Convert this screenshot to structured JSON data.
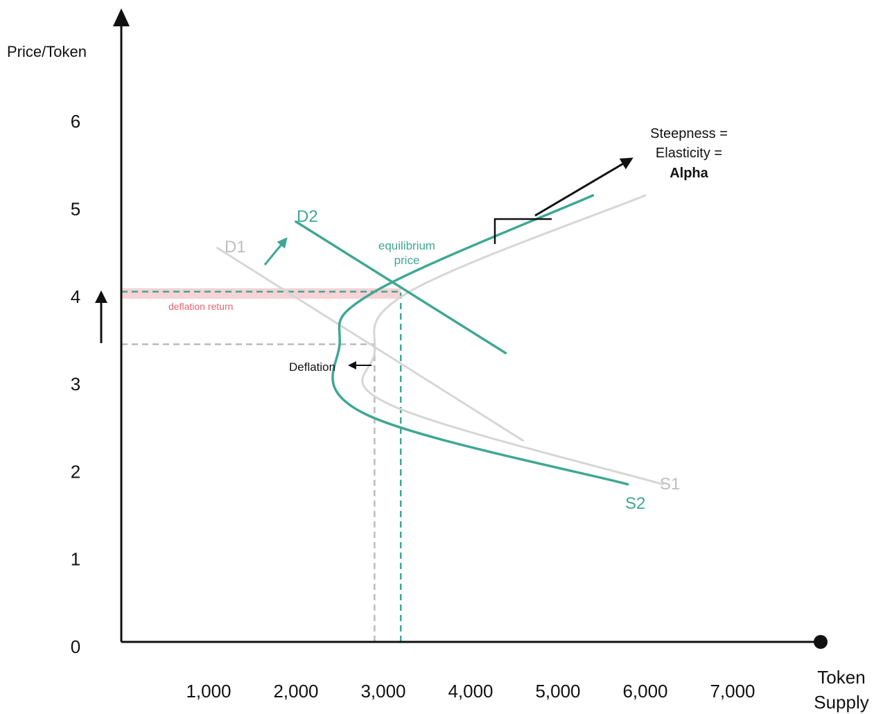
{
  "chart_data": {
    "type": "line",
    "ylabel": "Price/Token",
    "xlabel_lines": [
      "Token",
      "Supply"
    ],
    "x_ticks": [
      "1,000",
      "2,000",
      "3,000",
      "4,000",
      "5,000",
      "6,000",
      "7,000"
    ],
    "x_tick_values": [
      1000,
      2000,
      3000,
      4000,
      5000,
      6000,
      7000
    ],
    "y_ticks": [
      "0",
      "1",
      "2",
      "3",
      "4",
      "5",
      "6"
    ],
    "y_tick_values": [
      0,
      1,
      2,
      3,
      4,
      5,
      6
    ],
    "xlim": [
      0,
      7000
    ],
    "ylim": [
      0,
      6
    ],
    "series": [
      {
        "name": "D1",
        "color": "#d6d6d6",
        "points": [
          [
            1100,
            4.5
          ],
          [
            4600,
            2.3
          ]
        ]
      },
      {
        "name": "D2",
        "color": "#3fa794",
        "points": [
          [
            2000,
            4.8
          ],
          [
            4400,
            3.3
          ]
        ]
      },
      {
        "name": "S1",
        "color": "#d6d6d6",
        "points": [
          [
            6200,
            1.8
          ],
          [
            3100,
            2.7
          ],
          [
            2900,
            3.3
          ],
          [
            3300,
            4.0
          ],
          [
            6000,
            5.1
          ]
        ]
      },
      {
        "name": "S2",
        "color": "#3fa794",
        "points": [
          [
            5800,
            1.8
          ],
          [
            2800,
            2.6
          ],
          [
            2500,
            3.4
          ],
          [
            2900,
            4.0
          ],
          [
            5400,
            5.1
          ]
        ]
      }
    ],
    "reference_lines": [
      {
        "kind": "horizontal",
        "y": 4.0,
        "x_to": 3200,
        "color": "#3fa794",
        "style": "dashed"
      },
      {
        "kind": "vertical",
        "x": 3200,
        "y_from": 0,
        "y_to": 4.0,
        "color": "#3fa794",
        "style": "dashed"
      },
      {
        "kind": "horizontal",
        "y": 3.4,
        "x_to": 2900,
        "color": "#bbbbbb",
        "style": "dashed"
      },
      {
        "kind": "vertical",
        "x": 2900,
        "y_from": 0,
        "y_to": 3.4,
        "color": "#bbbbbb",
        "style": "dashed"
      }
    ],
    "band": {
      "y_from": 3.92,
      "y_to": 4.04,
      "color": "#f6d3d6"
    },
    "annotations": {
      "equilibrium": [
        "equilibrium",
        "price"
      ],
      "deflation_return": "deflation return",
      "deflation": "Deflation",
      "steepness": [
        "Steepness =",
        "Elasticity =",
        "Alpha"
      ]
    },
    "colors": {
      "accent": "#3fa794",
      "old_curves": "#d6d6d6",
      "deflation_return": "#e8636e",
      "axis": "#111111"
    }
  }
}
